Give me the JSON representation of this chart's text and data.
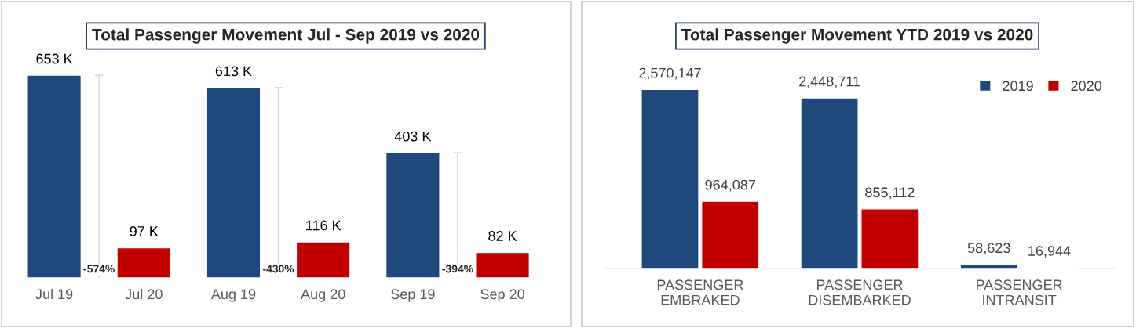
{
  "chart_data": [
    {
      "type": "bar",
      "title": "Total Passenger Movement Jul - Sep 2019 vs 2020",
      "categories": [
        "Jul 19",
        "Jul 20",
        "Aug 19",
        "Aug 20",
        "Sep 19",
        "Sep 20"
      ],
      "values": [
        653,
        97,
        613,
        116,
        403,
        82
      ],
      "colors": [
        "#1f497d",
        "#c00000",
        "#1f497d",
        "#c00000",
        "#1f497d",
        "#c00000"
      ],
      "value_labels": [
        "653 K",
        "97 K",
        "613 K",
        "116 K",
        "403 K",
        "82 K"
      ],
      "annotations": [
        "-574%",
        "-430%",
        "-394%"
      ],
      "grid": false
    },
    {
      "type": "bar",
      "title": "Total Passenger Movement YTD 2019 vs 2020",
      "categories": [
        "PASSENGER\nEMBRAKED",
        "PASSENGER\nDISEMBARKED",
        "PASSENGER\nINTRANSIT"
      ],
      "series": [
        {
          "name": "2019",
          "color": "#1f497d",
          "values": [
            2570147,
            2448711,
            58623
          ],
          "value_labels": [
            "2,570,147",
            "2,448,711",
            "58,623"
          ]
        },
        {
          "name": "2020",
          "color": "#c00000",
          "values": [
            964087,
            855112,
            16944
          ],
          "value_labels": [
            "964,087",
            "855,112",
            "16,944"
          ]
        }
      ],
      "grid": false,
      "legend": "top right"
    }
  ]
}
